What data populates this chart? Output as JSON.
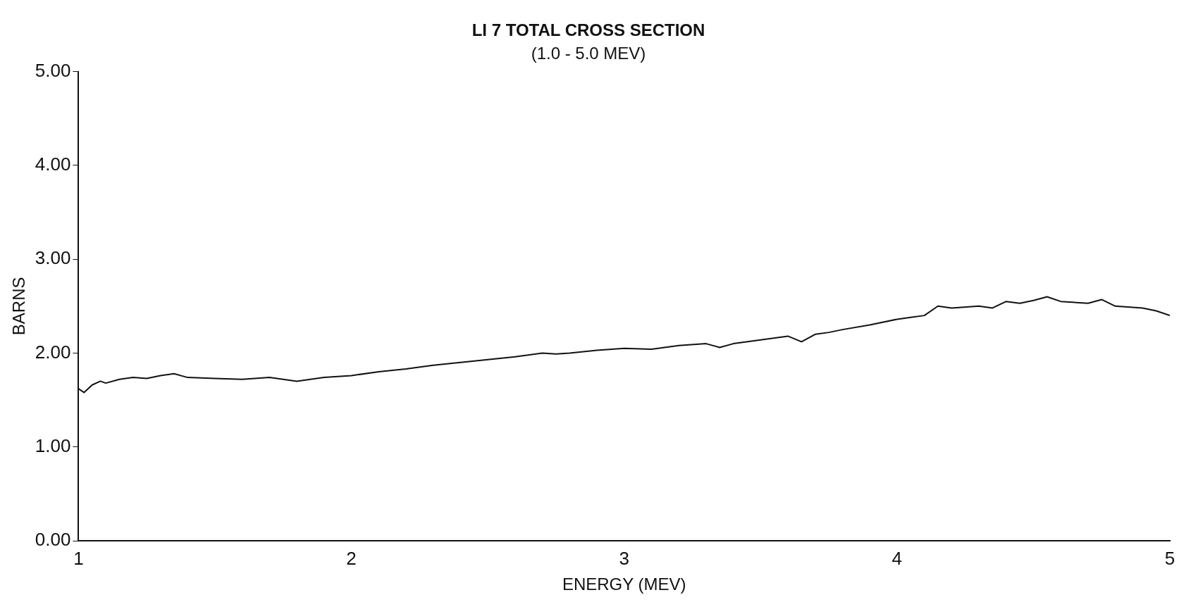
{
  "chart_data": {
    "type": "line",
    "title": "LI 7 TOTAL CROSS SECTION",
    "subtitle": "(1.0 - 5.0 MEV)",
    "xlabel": "ENERGY (MEV)",
    "ylabel": "BARNS",
    "x": [
      1.0,
      1.02,
      1.05,
      1.08,
      1.1,
      1.15,
      1.2,
      1.25,
      1.3,
      1.35,
      1.4,
      1.5,
      1.6,
      1.7,
      1.8,
      1.9,
      2.0,
      2.1,
      2.2,
      2.3,
      2.4,
      2.5,
      2.6,
      2.7,
      2.75,
      2.8,
      2.9,
      3.0,
      3.1,
      3.2,
      3.3,
      3.35,
      3.4,
      3.5,
      3.6,
      3.65,
      3.7,
      3.75,
      3.8,
      3.9,
      4.0,
      4.05,
      4.1,
      4.15,
      4.2,
      4.3,
      4.35,
      4.4,
      4.45,
      4.5,
      4.55,
      4.6,
      4.7,
      4.75,
      4.8,
      4.9,
      4.95,
      5.0
    ],
    "series": [
      {
        "color": "#111111",
        "values": [
          1.62,
          1.58,
          1.66,
          1.7,
          1.68,
          1.72,
          1.74,
          1.73,
          1.76,
          1.78,
          1.74,
          1.73,
          1.72,
          1.74,
          1.7,
          1.74,
          1.76,
          1.8,
          1.83,
          1.87,
          1.9,
          1.93,
          1.96,
          2.0,
          1.99,
          2.0,
          2.03,
          2.05,
          2.04,
          2.08,
          2.1,
          2.06,
          2.1,
          2.14,
          2.18,
          2.12,
          2.2,
          2.22,
          2.25,
          2.3,
          2.36,
          2.38,
          2.4,
          2.5,
          2.48,
          2.5,
          2.48,
          2.55,
          2.53,
          2.56,
          2.6,
          2.55,
          2.53,
          2.57,
          2.5,
          2.48,
          2.45,
          2.4
        ]
      }
    ],
    "xlim": [
      1,
      5
    ],
    "xticks": [
      1,
      2,
      3,
      4,
      5
    ],
    "ylim": [
      0,
      5
    ],
    "yticks": [
      {
        "value": 0,
        "label": "0.00"
      },
      {
        "value": 1,
        "label": "1.00"
      },
      {
        "value": 2,
        "label": "2.00"
      },
      {
        "value": 3,
        "label": "3.00"
      },
      {
        "value": 4,
        "label": "4.00"
      },
      {
        "value": 5,
        "label": "5.00"
      }
    ],
    "grid": false,
    "legend": false,
    "marker": "none",
    "line_style": "solid"
  }
}
